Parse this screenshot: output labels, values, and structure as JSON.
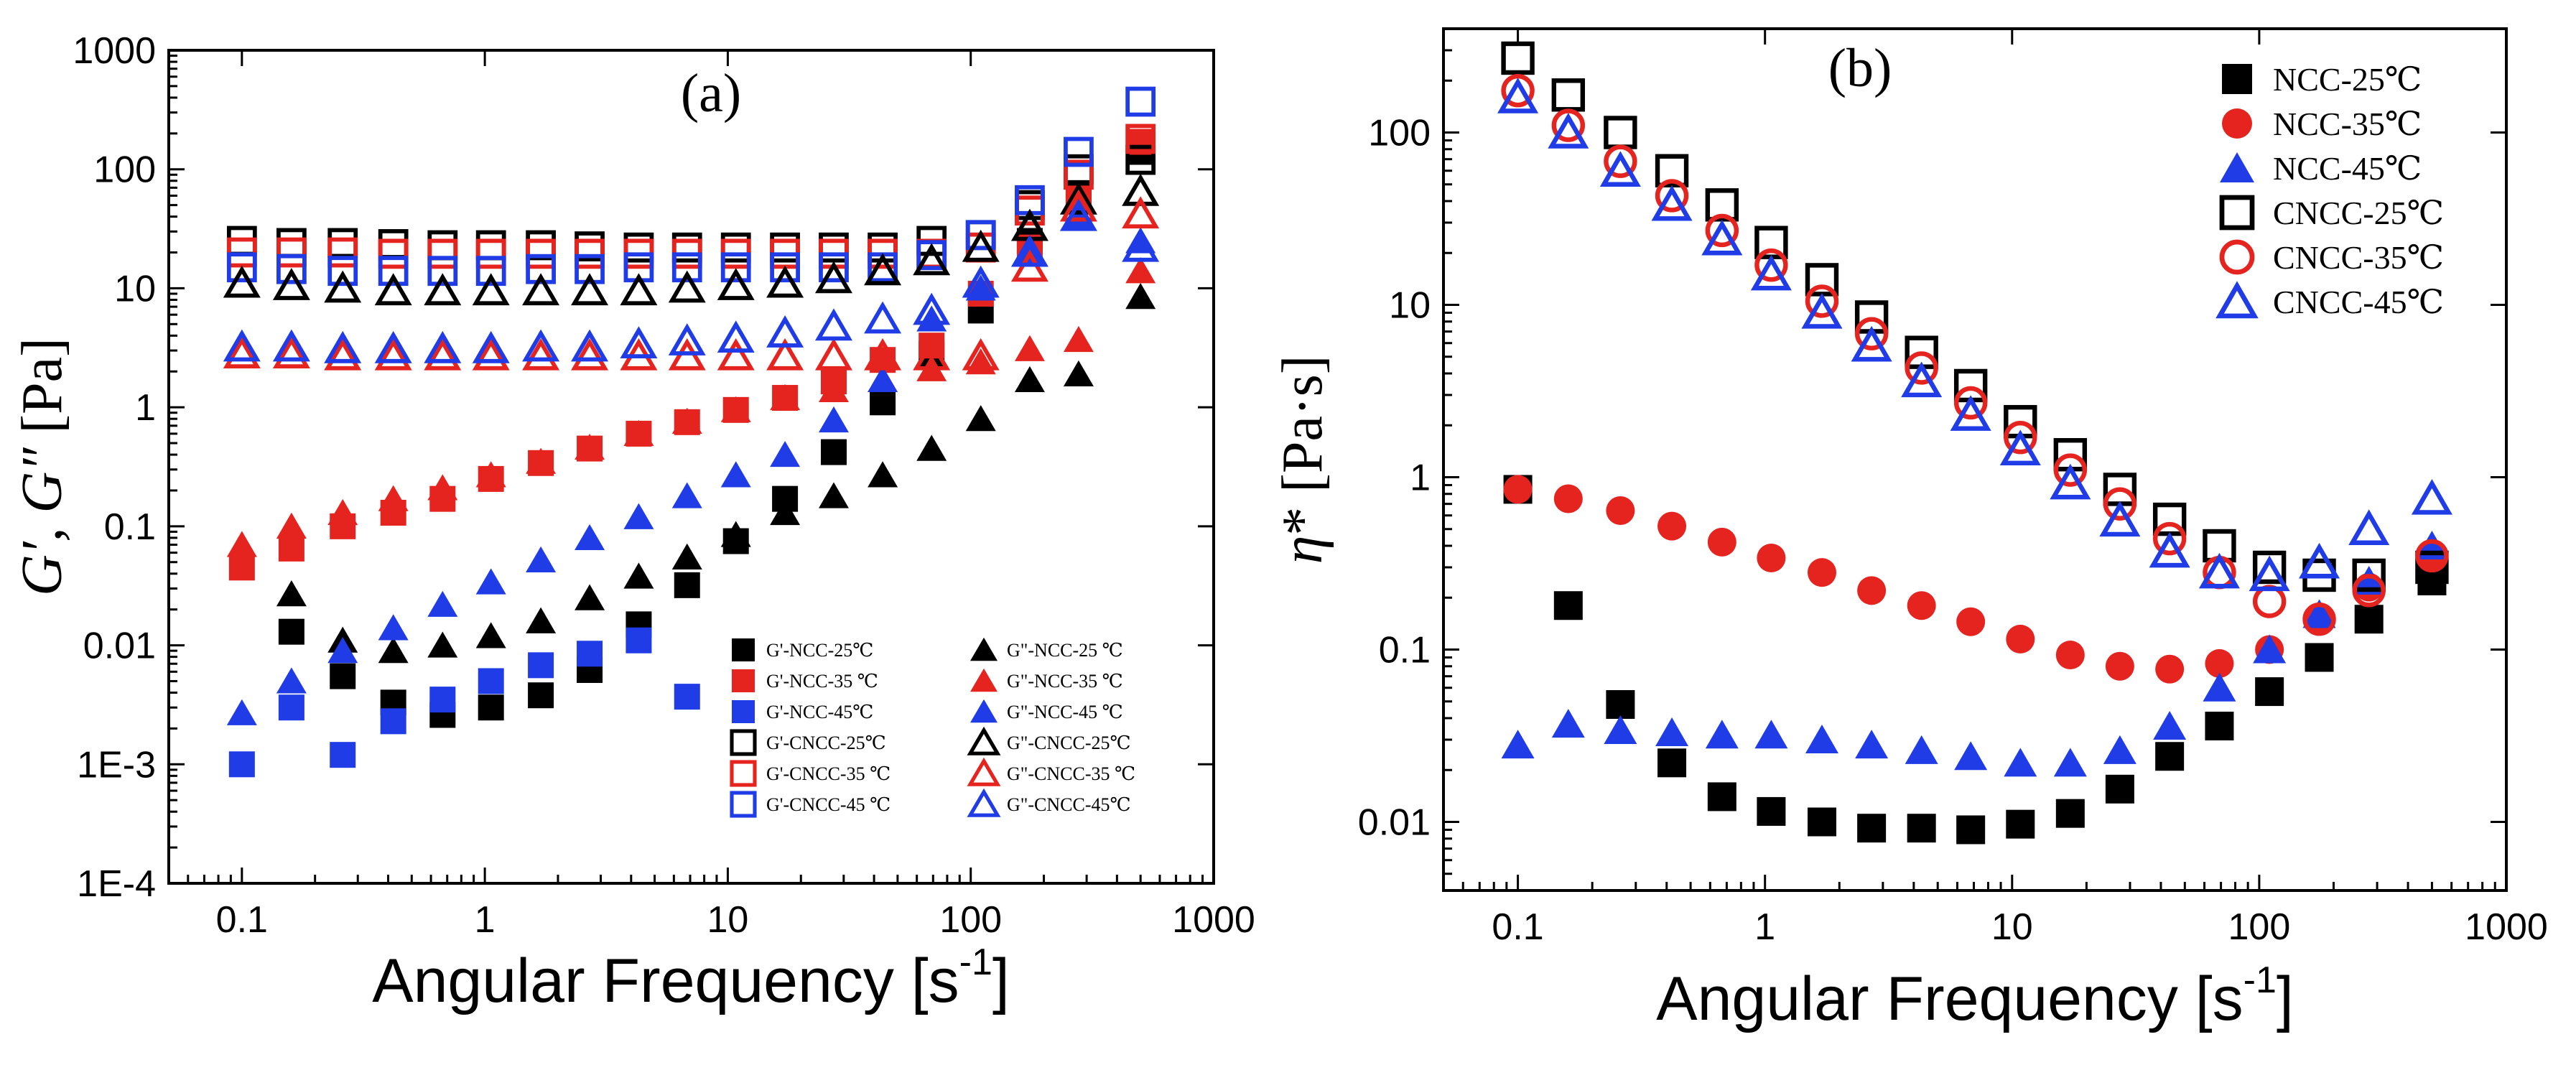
{
  "chart_data": [
    {
      "type": "scatter",
      "panel": "(a)",
      "title": "",
      "xlabel": "Angular Frequency [s",
      "xlabel_sup": "-1",
      "xlabel_close": "]",
      "ylabel_g1": "G′, G″",
      "ylabel_unit": " [Pa]",
      "xscale": "log",
      "yscale": "log",
      "xlim": [
        0.05,
        1000
      ],
      "ylim": [
        0.0001,
        1000
      ],
      "x_ticks": [
        0.1,
        1,
        10,
        100,
        1000
      ],
      "x_tick_labels": [
        "0.1",
        "1",
        "10",
        "100",
        "1000"
      ],
      "y_ticks": [
        0.0001,
        0.001,
        0.01,
        0.1,
        1,
        10,
        100,
        1000
      ],
      "y_tick_labels": [
        "1E-4",
        "1E-3",
        "0.01",
        "0.1",
        "1",
        "10",
        "100",
        "1000"
      ],
      "legend_position": "lower-right",
      "x": [
        0.1,
        0.16,
        0.26,
        0.42,
        0.67,
        1.06,
        1.7,
        2.7,
        4.3,
        6.8,
        10.8,
        17.2,
        27.3,
        43.4,
        69,
        110,
        175,
        278,
        500
      ],
      "series": [
        {
          "name": "G'-NCC-25℃",
          "color": "#000000",
          "marker": "square",
          "filled": true,
          "values": [
            null,
            0.013,
            0.0055,
            0.0033,
            0.0026,
            0.003,
            0.0038,
            0.0062,
            0.015,
            0.032,
            0.075,
            0.17,
            0.42,
            1.1,
            2.8,
            6.5,
            25,
            62,
            140
          ]
        },
        {
          "name": "G'-NCC-35 ℃",
          "color": "#e52420",
          "marker": "square",
          "filled": true,
          "values": [
            0.045,
            0.065,
            0.1,
            0.13,
            0.17,
            0.25,
            0.34,
            0.45,
            0.6,
            0.75,
            0.95,
            1.2,
            1.65,
            2.5,
            3.3,
            9,
            22,
            55,
            170
          ]
        },
        {
          "name": "G'-NCC-45℃",
          "color": "#1f3ce6",
          "marker": "square",
          "filled": true,
          "values": [
            0.001,
            0.003,
            0.0012,
            0.0023,
            0.0035,
            0.005,
            0.0068,
            0.0085,
            0.011,
            0.0037,
            null,
            null,
            null,
            null,
            null,
            null,
            null,
            null,
            null
          ]
        },
        {
          "name": "G\"-NCC-25 ℃",
          "color": "#000000",
          "marker": "triangle",
          "filled": true,
          "values": [
            null,
            0.027,
            0.011,
            0.009,
            0.01,
            0.012,
            0.016,
            0.025,
            0.038,
            0.055,
            0.085,
            0.13,
            0.18,
            0.27,
            0.45,
            0.8,
            1.7,
            1.9,
            8.5
          ]
        },
        {
          "name": "G\"-NCC-35 ℃",
          "color": "#e52420",
          "marker": "triangle",
          "filled": true,
          "values": [
            0.07,
            0.1,
            0.13,
            0.17,
            0.21,
            0.27,
            0.35,
            0.46,
            0.6,
            0.76,
            0.95,
            1.2,
            1.4,
            1.7,
            2.1,
            2.4,
            3.1,
            3.7,
            14
          ]
        },
        {
          "name": "G\"-NCC-45 ℃",
          "color": "#1f3ce6",
          "marker": "triangle",
          "filled": true,
          "values": [
            0.0027,
            0.005,
            0.009,
            0.014,
            0.022,
            0.034,
            0.052,
            0.08,
            0.12,
            0.18,
            0.27,
            0.4,
            0.78,
            1.7,
            5.5,
            10,
            20,
            40,
            25
          ]
        },
        {
          "name": "G'-CNCC-25℃",
          "color": "#000000",
          "marker": "square",
          "filled": false,
          "values": [
            25,
            24,
            24,
            23.5,
            23,
            23,
            23,
            22.5,
            22,
            22,
            22,
            22,
            22,
            22,
            25,
            28,
            50,
            100,
            120
          ]
        },
        {
          "name": "G'-CNCC-35 ℃",
          "color": "#e52420",
          "marker": "square",
          "filled": false,
          "values": [
            20,
            20,
            20,
            19.5,
            19.5,
            19.5,
            19.5,
            19.5,
            19.5,
            19.5,
            19.5,
            19.5,
            19.5,
            19.5,
            19.5,
            22,
            45,
            90,
            180
          ]
        },
        {
          "name": "G'-CNCC-45 ℃",
          "color": "#1f3ce6",
          "marker": "square",
          "filled": false,
          "values": [
            15,
            14.5,
            14,
            14,
            14,
            14,
            14.5,
            14.5,
            15,
            15,
            15,
            15,
            15,
            15,
            19,
            28,
            55,
            140,
            370
          ]
        },
        {
          "name": "G\"-CNCC-25℃",
          "color": "#000000",
          "marker": "triangle",
          "filled": false,
          "values": [
            11,
            10.5,
            10,
            9.5,
            9.5,
            9.5,
            9.5,
            9.5,
            9.5,
            10,
            10.5,
            11,
            12,
            14,
            17,
            22,
            33,
            55,
            65
          ]
        },
        {
          "name": "G\"-CNCC-35 ℃",
          "color": "#e52420",
          "marker": "triangle",
          "filled": false,
          "values": [
            2.8,
            2.8,
            2.7,
            2.7,
            2.7,
            2.7,
            2.7,
            2.7,
            2.7,
            2.7,
            2.7,
            2.7,
            2.7,
            2.7,
            2.7,
            2.7,
            15,
            48,
            42
          ]
        },
        {
          "name": "G\"-CNCC-45℃",
          "color": "#1f3ce6",
          "marker": "triangle",
          "filled": false,
          "values": [
            3.2,
            3.2,
            3.1,
            3.1,
            3.1,
            3.1,
            3.2,
            3.2,
            3.4,
            3.6,
            3.8,
            4.2,
            4.8,
            5.5,
            6.5,
            11,
            20,
            40,
            22
          ]
        }
      ],
      "legend_columns": [
        [
          "G'-NCC-25℃",
          "G'-NCC-35 ℃",
          "G'-NCC-45℃",
          "G'-CNCC-25℃",
          "G'-CNCC-35 ℃",
          "G'-CNCC-45 ℃"
        ],
        [
          "G\"-NCC-25 ℃",
          "G\"-NCC-35 ℃",
          "G\"-NCC-45 ℃",
          "G\"-CNCC-25℃",
          "G\"-CNCC-35 ℃",
          "G\"-CNCC-45℃"
        ]
      ]
    },
    {
      "type": "scatter",
      "panel": "(b)",
      "title": "",
      "xlabel": "Angular Frequency [s",
      "xlabel_sup": "-1",
      "xlabel_close": "]",
      "ylabel_eta": "η",
      "ylabel_star": "*",
      "ylabel_unit": " [Pa·s]",
      "xscale": "log",
      "yscale": "log",
      "xlim": [
        0.05,
        1000
      ],
      "ylim": [
        0.004,
        400
      ],
      "x_ticks": [
        0.1,
        1,
        10,
        100,
        1000
      ],
      "x_tick_labels": [
        "0.1",
        "1",
        "10",
        "100",
        "1000"
      ],
      "y_ticks": [
        0.01,
        0.1,
        1,
        10,
        100
      ],
      "y_tick_labels": [
        "0.01",
        "0.1",
        "1",
        "10",
        "100"
      ],
      "legend_position": "top-right",
      "x": [
        0.1,
        0.16,
        0.26,
        0.42,
        0.67,
        1.06,
        1.7,
        2.7,
        4.3,
        6.8,
        10.8,
        17.2,
        27.3,
        43.4,
        69,
        110,
        175,
        278,
        500
      ],
      "series": [
        {
          "name": "NCC-25℃",
          "color": "#000000",
          "marker": "square",
          "filled": true,
          "values": [
            0.85,
            0.18,
            0.048,
            0.022,
            0.014,
            0.0115,
            0.01,
            0.0092,
            0.0092,
            0.009,
            0.0097,
            0.0112,
            0.0155,
            0.024,
            0.036,
            0.057,
            0.09,
            0.15,
            0.25
          ]
        },
        {
          "name": "NCC-35℃",
          "color": "#e52420",
          "marker": "circle",
          "filled": true,
          "values": [
            0.85,
            0.75,
            0.64,
            0.52,
            0.42,
            0.34,
            0.28,
            0.22,
            0.18,
            0.145,
            0.115,
            0.093,
            0.08,
            0.077,
            0.083,
            0.1,
            0.15,
            0.23,
            0.35
          ]
        },
        {
          "name": "NCC-45℃",
          "color": "#1f3ce6",
          "marker": "triangle",
          "filled": true,
          "values": [
            0.028,
            0.037,
            0.034,
            0.033,
            0.032,
            0.032,
            0.03,
            0.028,
            0.026,
            0.024,
            0.022,
            0.022,
            0.026,
            0.036,
            0.06,
            0.1,
            0.16,
            0.25,
            0.4
          ]
        },
        {
          "name": "CNCC-25℃",
          "color": "#000000",
          "marker": "square",
          "filled": false,
          "values": [
            270,
            165,
            100,
            60,
            38,
            23,
            14,
            8.5,
            5.3,
            3.4,
            2.1,
            1.35,
            0.85,
            0.57,
            0.4,
            0.3,
            0.27,
            0.27,
            0.3
          ]
        },
        {
          "name": "CNCC-35℃",
          "color": "#e52420",
          "marker": "circle",
          "filled": false,
          "values": [
            175,
            110,
            68,
            43,
            27,
            17,
            10.5,
            6.8,
            4.3,
            2.7,
            1.7,
            1.1,
            0.7,
            0.44,
            0.28,
            0.19,
            0.15,
            0.22,
            0.35
          ]
        },
        {
          "name": "CNCC-45℃",
          "color": "#1f3ce6",
          "marker": "triangle",
          "filled": false,
          "values": [
            160,
            100,
            60,
            38,
            24,
            15,
            9,
            5.8,
            3.6,
            2.3,
            1.45,
            0.92,
            0.56,
            0.37,
            0.28,
            0.27,
            0.32,
            0.5,
            0.75
          ]
        }
      ]
    }
  ]
}
